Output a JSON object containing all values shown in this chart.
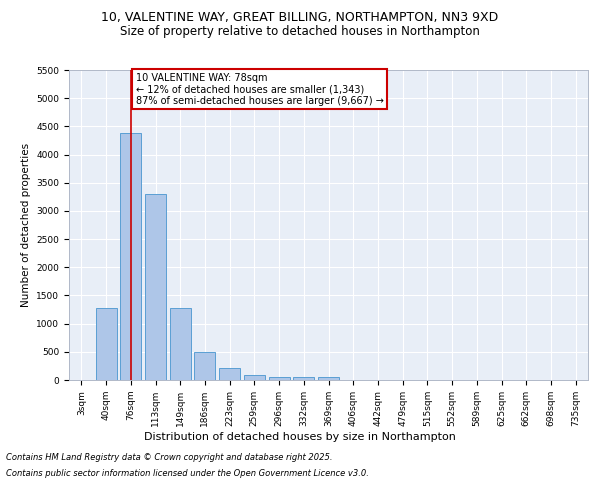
{
  "title_line1": "10, VALENTINE WAY, GREAT BILLING, NORTHAMPTON, NN3 9XD",
  "title_line2": "Size of property relative to detached houses in Northampton",
  "xlabel": "Distribution of detached houses by size in Northampton",
  "ylabel": "Number of detached properties",
  "categories": [
    "3sqm",
    "40sqm",
    "76sqm",
    "113sqm",
    "149sqm",
    "186sqm",
    "223sqm",
    "259sqm",
    "296sqm",
    "332sqm",
    "369sqm",
    "406sqm",
    "442sqm",
    "479sqm",
    "515sqm",
    "552sqm",
    "589sqm",
    "625sqm",
    "662sqm",
    "698sqm",
    "735sqm"
  ],
  "values": [
    0,
    1270,
    4380,
    3300,
    1280,
    500,
    220,
    90,
    60,
    50,
    50,
    0,
    0,
    0,
    0,
    0,
    0,
    0,
    0,
    0,
    0
  ],
  "bar_color": "#aec6e8",
  "bar_edge_color": "#5a9fd4",
  "vline_x_index": 2,
  "vline_color": "#cc0000",
  "annotation_text": "10 VALENTINE WAY: 78sqm\n← 12% of detached houses are smaller (1,343)\n87% of semi-detached houses are larger (9,667) →",
  "annotation_box_color": "#ffffff",
  "annotation_box_edge_color": "#cc0000",
  "ylim": [
    0,
    5500
  ],
  "yticks": [
    0,
    500,
    1000,
    1500,
    2000,
    2500,
    3000,
    3500,
    4000,
    4500,
    5000,
    5500
  ],
  "background_color": "#e8eef7",
  "grid_color": "#ffffff",
  "footer_line1": "Contains HM Land Registry data © Crown copyright and database right 2025.",
  "footer_line2": "Contains public sector information licensed under the Open Government Licence v3.0.",
  "title_fontsize": 9,
  "subtitle_fontsize": 8.5,
  "annotation_fontsize": 7,
  "footer_fontsize": 6,
  "xlabel_fontsize": 8,
  "ylabel_fontsize": 7.5,
  "tick_fontsize": 6.5
}
